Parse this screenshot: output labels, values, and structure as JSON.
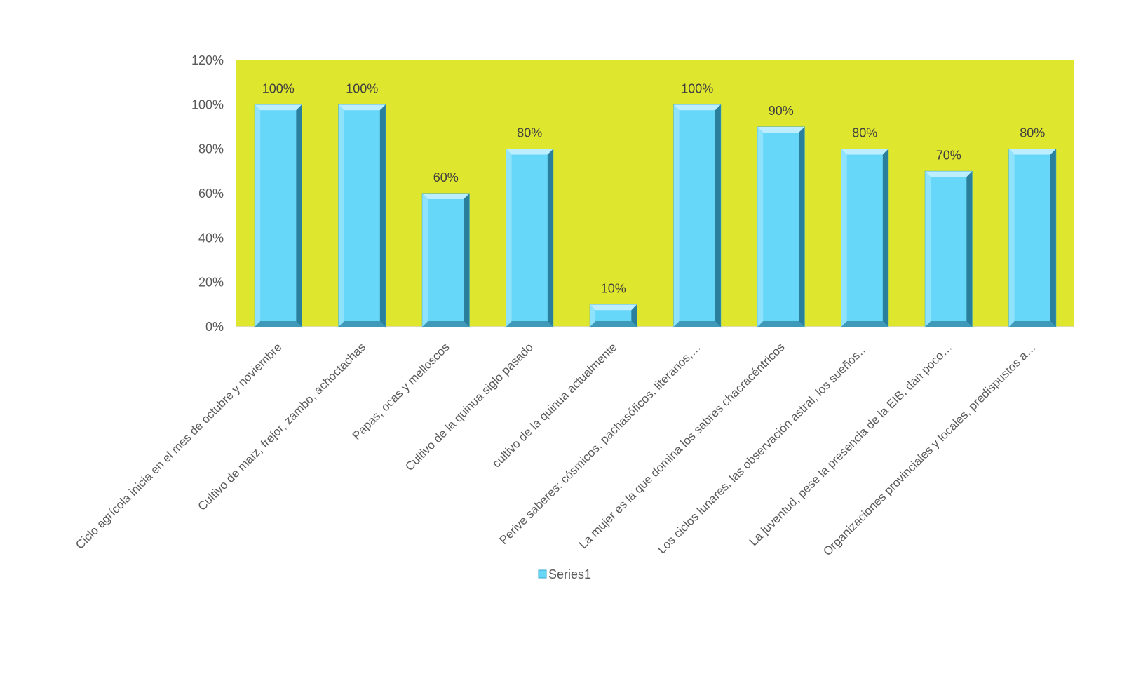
{
  "chart_data": {
    "type": "bar",
    "title": "",
    "xlabel": "",
    "ylabel": "",
    "ylim": [
      0,
      1.2
    ],
    "yticks": [
      0,
      0.2,
      0.4,
      0.6,
      0.8,
      1.0,
      1.2
    ],
    "ytick_labels": [
      "0%",
      "20%",
      "40%",
      "60%",
      "80%",
      "100%",
      "120%"
    ],
    "grid": false,
    "legend_position": "bottom",
    "categories": [
      "Ciclo agrícola inicia en el mes de octubre y noviembre",
      "Cultivo de maíz, frejor, zambo, achoctachas",
      "Papas, ocas y melloscos",
      "Cultivo de la quinua siglo pasado",
      "cultivo de la quinua actualmente",
      "Perive saberes: cósmicos, pachasóficos,  literarios,…",
      "La mujer es la que domina los sabres chacracéntricos",
      "Los ciclos lunares, las observación astral, los sueños…",
      "La juventud, pese la presencia de la EIB, dan poco…",
      "Organizaciones provinciales y locales, predispustos a…"
    ],
    "series": [
      {
        "name": "Series1",
        "values": [
          1.0,
          1.0,
          0.6,
          0.8,
          0.1,
          1.0,
          0.9,
          0.8,
          0.7,
          0.8
        ],
        "data_labels": [
          "100%",
          "100%",
          "60%",
          "80%",
          "10%",
          "100%",
          "90%",
          "80%",
          "70%",
          "80%"
        ]
      }
    ],
    "colors": {
      "plot_background": "#dfe62e",
      "bar_fill": "#66d6f9",
      "bar_edge_light": "#bdeeff",
      "bar_edge_dark": "#2a7f9c"
    }
  }
}
